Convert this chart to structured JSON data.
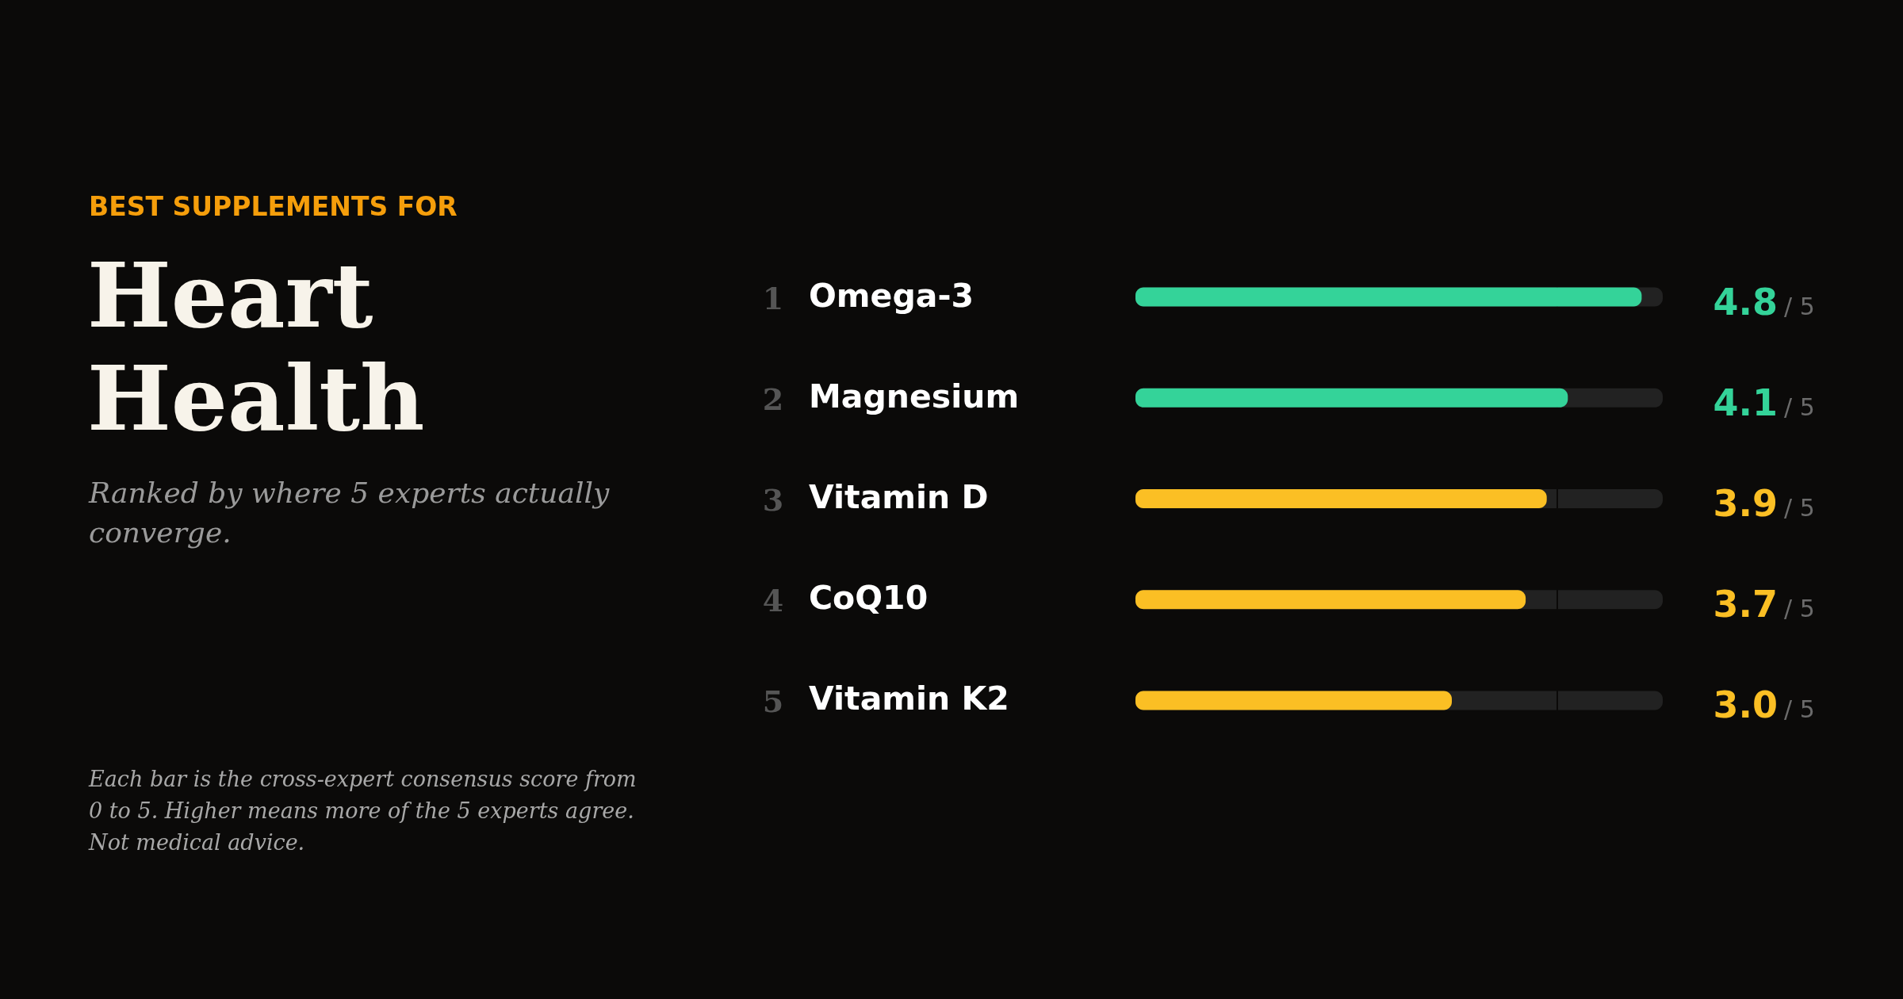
{
  "chart_data": {
    "type": "bar",
    "orientation": "horizontal",
    "title": "Heart Health",
    "subtitle": "Ranked by where 5 experts actually converge.",
    "categories": [
      "Omega-3",
      "Magnesium",
      "Vitamin D",
      "CoQ10",
      "Vitamin K2"
    ],
    "values": [
      4.8,
      4.1,
      3.9,
      3.7,
      3.0
    ],
    "colors": [
      "#34d399",
      "#34d399",
      "#fbbf24",
      "#fbbf24",
      "#fbbf24"
    ],
    "value_labels": [
      "4.8",
      "4.1",
      "3.9",
      "3.7",
      "3.0"
    ],
    "xlim": [
      0,
      5
    ],
    "ref_lines": [
      {
        "axis": "x",
        "value": 4,
        "color": "#0b0a09"
      }
    ],
    "annotations": [
      "BEST SUPPLEMENTS FOR",
      "1",
      "2",
      "3",
      "4",
      "5",
      "/ 5",
      "/ 5",
      "/ 5",
      "/ 5",
      "/ 5",
      "Each bar is the cross-expert consensus score from 0 to 5. Higher means more of the 5 experts agree. Not medical advice."
    ]
  }
}
